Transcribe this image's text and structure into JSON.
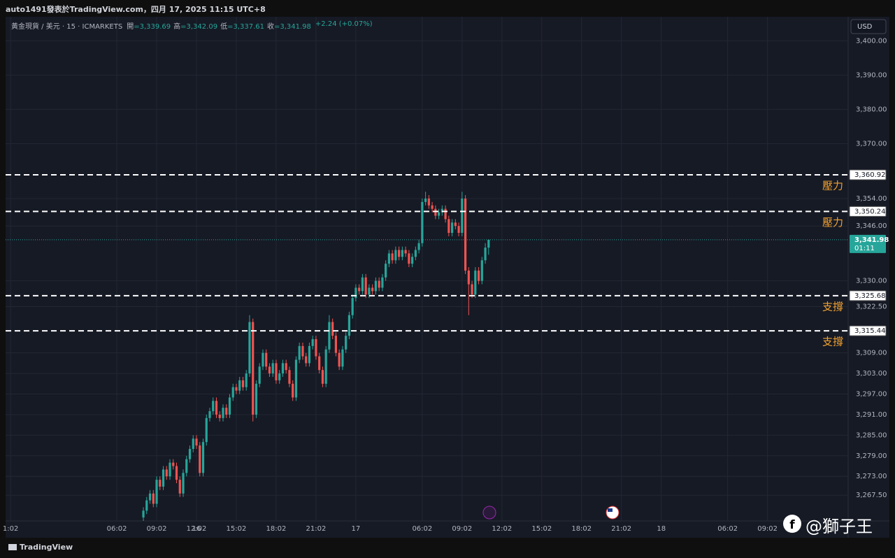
{
  "header": {
    "banner": "auto1491發表於TradingView.com，四月 17, 2025 11:15 UTC+8",
    "symbol": "黃金現貨 / 美元 · 15 · ICMARKETS",
    "fields": [
      {
        "label": "開",
        "value": "=3,339.69"
      },
      {
        "label": "高",
        "value": "=3,342.09"
      },
      {
        "label": "低",
        "value": "=3,337.61"
      },
      {
        "label": "收",
        "value": "=3,341.98"
      }
    ],
    "change": "+2.24 (+0.07%)",
    "currency": "USD",
    "brand": "TradingView",
    "watermark": "@獅子王"
  },
  "chart_data": {
    "type": "candlestick",
    "x": [
      0,
      1,
      2,
      3,
      4,
      5,
      6,
      7,
      8,
      9,
      10,
      11,
      12,
      13,
      14,
      15,
      16,
      17,
      18,
      19,
      20,
      21,
      22,
      23,
      24,
      25,
      26,
      27,
      28,
      29,
      30,
      31,
      32,
      33,
      34,
      35,
      36,
      37,
      38,
      39,
      40,
      41,
      42,
      43,
      44,
      45,
      46,
      47,
      48,
      49,
      50,
      51,
      52,
      53,
      54,
      55,
      56,
      57,
      58,
      59,
      60,
      61,
      62,
      63,
      64,
      65,
      66,
      67,
      68,
      69,
      70,
      71,
      72,
      73,
      74,
      75,
      76,
      77,
      78,
      79,
      80,
      81,
      82,
      83,
      84,
      85,
      86,
      87,
      88,
      89,
      90,
      91,
      92,
      93,
      94,
      95,
      96,
      97,
      98,
      99,
      100,
      101,
      102,
      103,
      104
    ],
    "open": [
      3261,
      3263,
      3266,
      3268,
      3265,
      3272,
      3270,
      3275,
      3273,
      3277,
      3276,
      3272,
      3268,
      3274,
      3278,
      3281,
      3284,
      3282,
      3274,
      3283,
      3290,
      3292,
      3295,
      3291,
      3290,
      3293,
      3291,
      3296,
      3299,
      3298,
      3301,
      3299,
      3303,
      3318,
      3291,
      3300,
      3305,
      3309,
      3305,
      3303,
      3306,
      3301,
      3303,
      3306,
      3304,
      3300,
      3296,
      3307,
      3311,
      3308,
      3306,
      3311,
      3313,
      3308,
      3304,
      3300,
      3310,
      3318,
      3314,
      3309,
      3305,
      3310,
      3314,
      3320,
      3325,
      3328,
      3327,
      3331,
      3326,
      3328,
      3327,
      3330,
      3328,
      3331,
      3335,
      3338,
      3336,
      3339,
      3337,
      3339,
      3338,
      3335,
      3337,
      3339,
      3341,
      3353,
      3354,
      3352,
      3351,
      3349,
      3350,
      3351,
      3348,
      3344,
      3347,
      3346,
      3344,
      3354,
      3333,
      3329,
      3326,
      3333,
      3330,
      3336,
      3339.69
    ],
    "high": [
      3264,
      3267,
      3269,
      3269,
      3273,
      3273,
      3276,
      3276,
      3278,
      3278,
      3277,
      3273,
      3275,
      3279,
      3282,
      3285,
      3285,
      3283,
      3284,
      3291,
      3293,
      3296,
      3296,
      3292,
      3294,
      3294,
      3297,
      3300,
      3300,
      3302,
      3302,
      3304,
      3320,
      3319,
      3301,
      3306,
      3310,
      3310,
      3306,
      3307,
      3307,
      3304,
      3307,
      3307,
      3305,
      3301,
      3308,
      3312,
      3312,
      3309,
      3312,
      3314,
      3314,
      3309,
      3305,
      3311,
      3320,
      3319,
      3315,
      3310,
      3311,
      3315,
      3321,
      3326,
      3329,
      3329,
      3332,
      3332,
      3329,
      3329,
      3331,
      3331,
      3332,
      3336,
      3339,
      3339,
      3340,
      3340,
      3340,
      3340,
      3339,
      3338,
      3340,
      3342,
      3354,
      3356,
      3355,
      3353,
      3352,
      3351,
      3352,
      3352,
      3349,
      3348,
      3348,
      3347,
      3356,
      3355,
      3334,
      3330,
      3334,
      3334,
      3337,
      3341,
      3342.09
    ],
    "low": [
      3260,
      3262,
      3265,
      3264,
      3264,
      3269,
      3269,
      3272,
      3272,
      3275,
      3271,
      3267,
      3267,
      3273,
      3277,
      3280,
      3281,
      3273,
      3273,
      3282,
      3289,
      3291,
      3290,
      3289,
      3289,
      3290,
      3290,
      3295,
      3297,
      3297,
      3298,
      3298,
      3302,
      3289,
      3290,
      3299,
      3304,
      3304,
      3302,
      3302,
      3300,
      3300,
      3302,
      3303,
      3299,
      3295,
      3295,
      3306,
      3307,
      3305,
      3305,
      3310,
      3307,
      3303,
      3299,
      3299,
      3309,
      3313,
      3308,
      3304,
      3304,
      3309,
      3313,
      3319,
      3324,
      3326,
      3326,
      3325,
      3325,
      3326,
      3326,
      3327,
      3327,
      3330,
      3334,
      3335,
      3335,
      3336,
      3336,
      3337,
      3334,
      3334,
      3336,
      3338,
      3340,
      3352,
      3351,
      3350,
      3348,
      3348,
      3349,
      3347,
      3343,
      3343,
      3345,
      3343,
      3343,
      3332,
      3320,
      3325,
      3325,
      3329,
      3329,
      3335,
      3337.61
    ],
    "close": [
      3263,
      3266,
      3268,
      3265,
      3272,
      3270,
      3275,
      3273,
      3277,
      3276,
      3272,
      3268,
      3274,
      3278,
      3281,
      3284,
      3282,
      3274,
      3283,
      3290,
      3292,
      3295,
      3291,
      3290,
      3293,
      3291,
      3296,
      3299,
      3298,
      3301,
      3299,
      3303,
      3318,
      3291,
      3300,
      3305,
      3309,
      3305,
      3303,
      3306,
      3301,
      3303,
      3306,
      3304,
      3300,
      3296,
      3307,
      3311,
      3308,
      3306,
      3311,
      3313,
      3308,
      3304,
      3300,
      3310,
      3318,
      3314,
      3309,
      3305,
      3310,
      3314,
      3320,
      3325,
      3328,
      3327,
      3331,
      3326,
      3328,
      3327,
      3330,
      3328,
      3331,
      3335,
      3338,
      3336,
      3339,
      3337,
      3339,
      3338,
      3335,
      3337,
      3339,
      3341,
      3353,
      3354,
      3352,
      3351,
      3349,
      3350,
      3351,
      3348,
      3344,
      3347,
      3346,
      3344,
      3354,
      3333,
      3329,
      3326,
      3333,
      3330,
      3336,
      3339.69,
      3341.98
    ],
    "up_color": "#26a69a",
    "down_color": "#ef5350",
    "xlim": [
      -41.5,
      212.3
    ],
    "ylim": [
      3260,
      3407
    ],
    "xticks": [
      {
        "value": -40,
        "label": "1:02"
      },
      16,
      {
        "value": -8,
        "label": "06:02"
      },
      {
        "value": 4,
        "label": "09:02"
      },
      {
        "value": 16,
        "label": "12:02"
      },
      {
        "value": 28,
        "label": "15:02"
      },
      {
        "value": 40,
        "label": "18:02"
      },
      {
        "value": 52,
        "label": "21:02"
      },
      {
        "value": 64,
        "label": "17"
      },
      {
        "value": 84,
        "label": "06:02"
      },
      {
        "value": 96,
        "label": "09:02"
      },
      {
        "value": 108,
        "label": "12:02"
      },
      {
        "value": 120,
        "label": "15:02"
      },
      {
        "value": 132,
        "label": "18:02"
      },
      {
        "value": 144,
        "label": "21:02"
      },
      {
        "value": 156,
        "label": "18"
      },
      {
        "value": 176,
        "label": "06:02"
      },
      {
        "value": 188,
        "label": "09:02"
      }
    ],
    "yticks": [
      {
        "value": 3400,
        "label": "3,400.00"
      },
      {
        "value": 3390,
        "label": "3,390.00"
      },
      {
        "value": 3380,
        "label": "3,380.00"
      },
      {
        "value": 3370,
        "label": "3,370.00"
      },
      {
        "value": 3354,
        "label": "3,354.00"
      },
      {
        "value": 3346,
        "label": "3,346.00"
      },
      {
        "value": 3330,
        "label": "3,330.00"
      },
      {
        "value": 3322.5,
        "label": "3,322.50"
      },
      {
        "value": 3309,
        "label": "3,309.00"
      },
      {
        "value": 3303,
        "label": "3,303.00"
      },
      {
        "value": 3297,
        "label": "3,297.00"
      },
      {
        "value": 3291,
        "label": "3,291.00"
      },
      {
        "value": 3285,
        "label": "3,285.00"
      },
      {
        "value": 3279,
        "label": "3,279.00"
      },
      {
        "value": 3273,
        "label": "3,273.00"
      },
      {
        "value": 3267.5,
        "label": "3,267.50"
      }
    ],
    "grid": true,
    "levels": [
      {
        "value": 3360.92,
        "label": "3,360.92",
        "name": "壓力"
      },
      {
        "value": 3350.24,
        "label": "3,350.24",
        "name": "壓力"
      },
      {
        "value": 3325.68,
        "label": "3,325.68",
        "name": "支撐"
      },
      {
        "value": 3315.44,
        "label": "3,315.44",
        "name": "支撐"
      }
    ],
    "level_color": "#f0a030",
    "last_price": {
      "value": 3341.98,
      "label": "3,341.98",
      "countdown": "01:11"
    }
  }
}
